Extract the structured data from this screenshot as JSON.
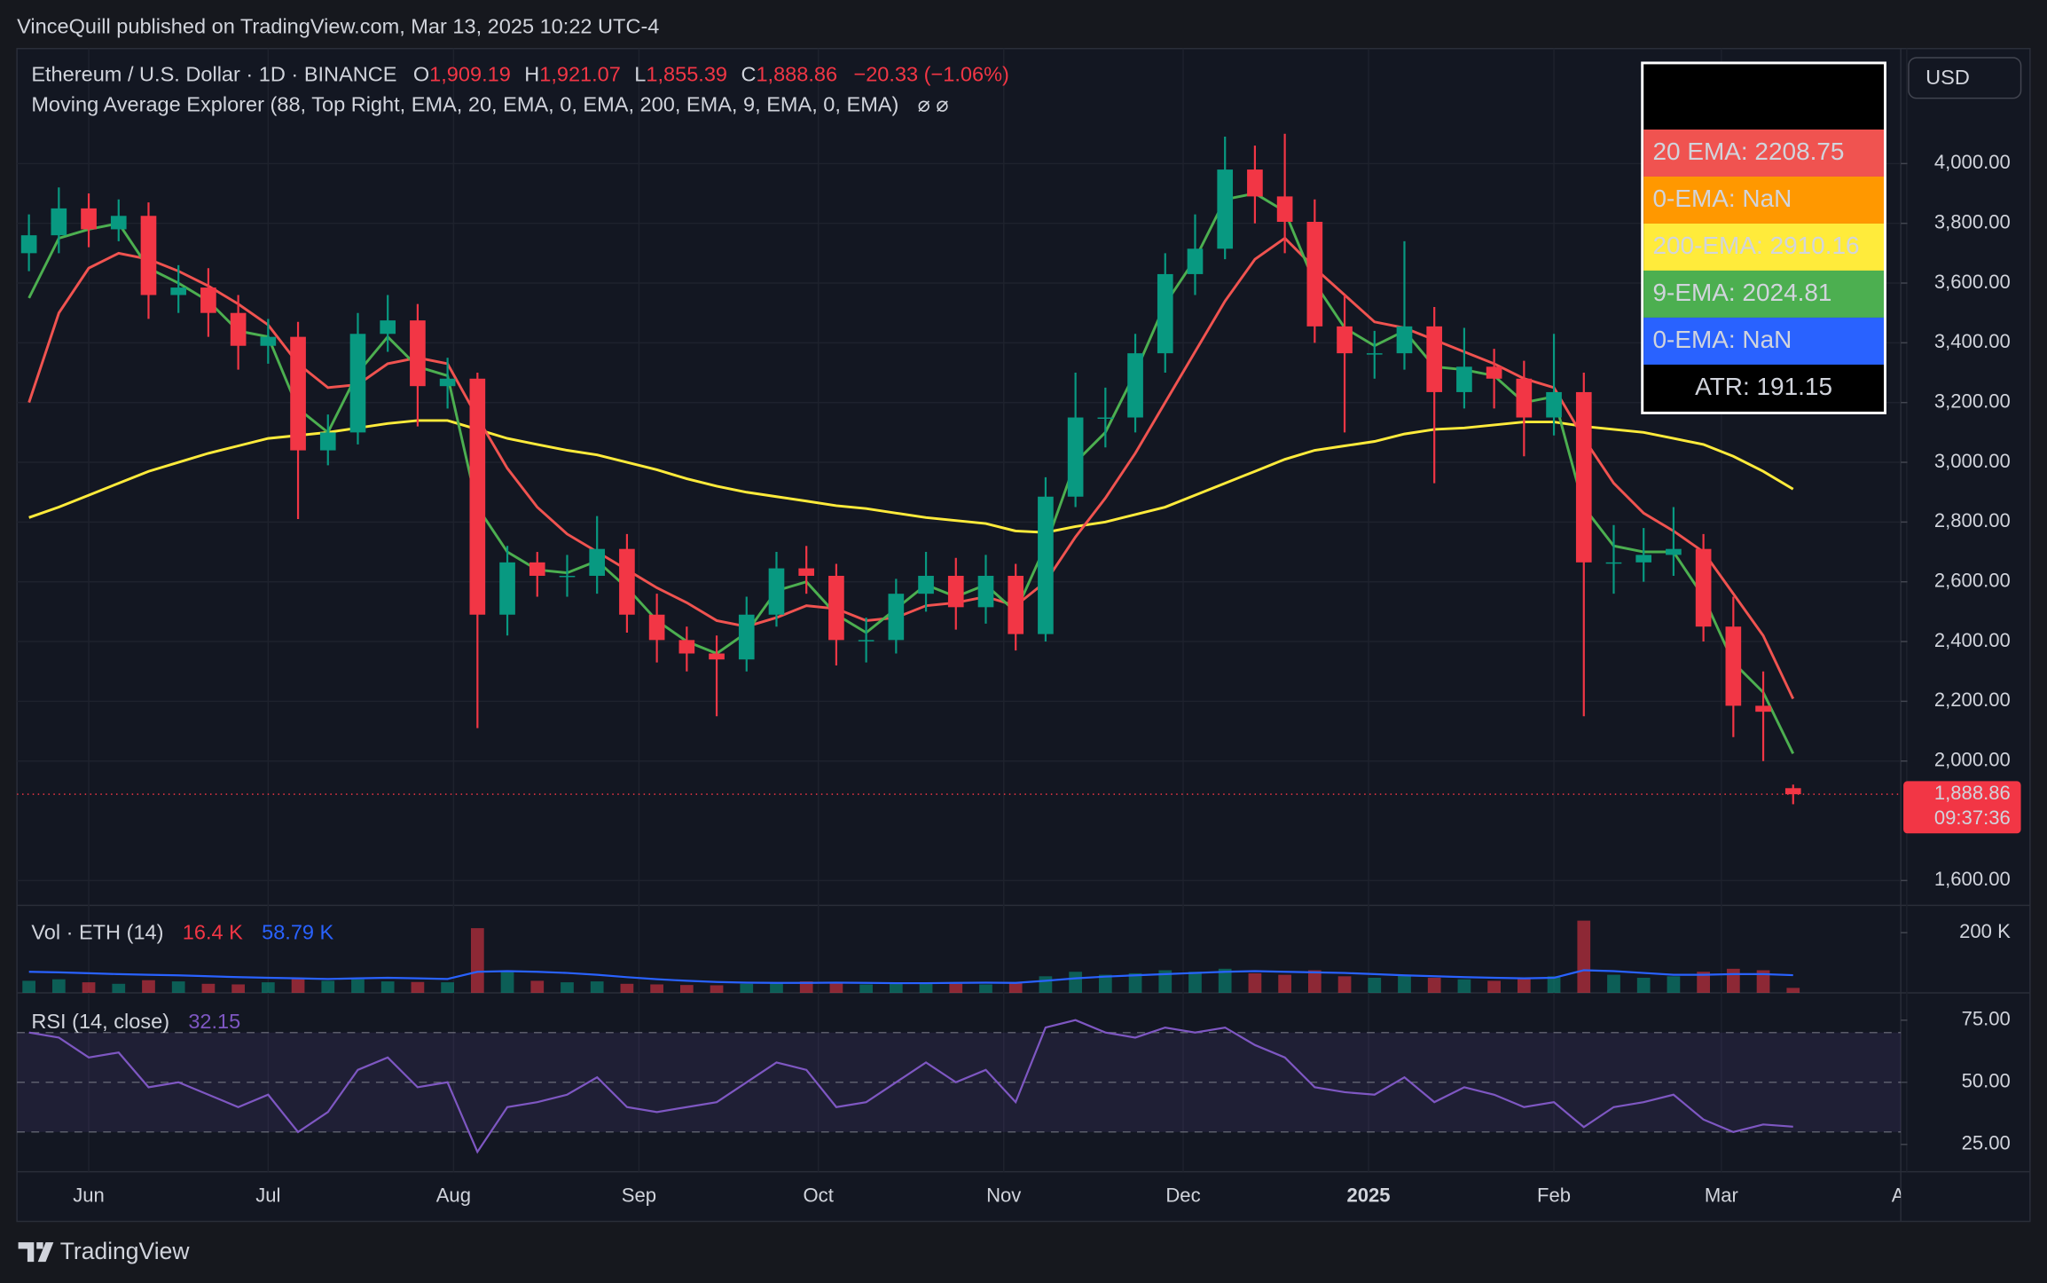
{
  "header": {
    "publisher": "VinceQuill published on TradingView.com, Mar 13, 2025 10:22 UTC-4",
    "brand": "TradingView",
    "currency": "USD"
  },
  "chart_data": [
    {
      "type": "candlestick",
      "title": "Ethereum / U.S. Dollar · 1D · BINANCE",
      "ohlc_legend": [
        {
          "key": "O",
          "text": "1,909.19"
        },
        {
          "key": "H",
          "text": "1,921.07"
        },
        {
          "key": "L",
          "text": "1,855.39"
        },
        {
          "key": "C",
          "text": "1,888.86"
        }
      ],
      "change": "−20.33 (−1.06%)",
      "indicator": "Moving Average Explorer (88, Top Right, EMA, 20, EMA, 0, EMA, 200, EMA, 9, EMA, 0, EMA)",
      "indicator_icons": "⌀ ⌀",
      "up_color": "#089981",
      "down_color": "#f23645",
      "x": [
        -10,
        -5,
        0,
        5,
        10,
        15,
        20,
        25,
        30,
        35,
        40,
        45,
        50,
        55,
        60,
        65,
        70,
        75,
        80,
        85,
        90,
        95,
        100,
        105,
        110,
        115,
        120,
        125,
        130,
        135,
        140,
        145,
        150,
        155,
        160,
        165,
        170,
        175,
        180,
        185,
        190,
        195,
        200,
        205,
        210,
        215,
        220,
        225,
        230,
        235,
        240,
        245,
        250,
        255,
        260,
        265,
        270,
        275,
        280,
        285
      ],
      "open": [
        3700,
        3760,
        3850,
        3780,
        3825,
        3560,
        3585,
        3500,
        3390,
        3420,
        3040,
        3100,
        3430,
        3475,
        3255,
        3280,
        2490,
        2665,
        2620,
        2620,
        2710,
        2490,
        2405,
        2360,
        2340,
        2490,
        2645,
        2620,
        2405,
        2405,
        2560,
        2620,
        2515,
        2620,
        2425,
        2885,
        3150,
        3150,
        3365,
        3630,
        3715,
        3980,
        3890,
        3805,
        3455,
        3365,
        3365,
        3455,
        3235,
        3320,
        3280,
        3150,
        3235,
        2665,
        2665,
        2690,
        2710,
        2450,
        2185,
        1909.19
      ],
      "high": [
        3830,
        3920,
        3900,
        3880,
        3870,
        3660,
        3650,
        3560,
        3480,
        3470,
        3160,
        3500,
        3560,
        3530,
        3350,
        3300,
        2720,
        2700,
        2690,
        2820,
        2760,
        2560,
        2450,
        2420,
        2550,
        2700,
        2720,
        2660,
        2480,
        2610,
        2700,
        2680,
        2690,
        2660,
        2950,
        3300,
        3250,
        3430,
        3700,
        3830,
        4090,
        4060,
        4100,
        3880,
        3560,
        3440,
        3740,
        3520,
        3450,
        3380,
        3340,
        3430,
        3300,
        2790,
        2780,
        2850,
        2760,
        2550,
        2300,
        1921.07
      ],
      "low": [
        3640,
        3700,
        3720,
        3740,
        3480,
        3500,
        3420,
        3310,
        3330,
        2810,
        2990,
        3060,
        3370,
        3120,
        3180,
        2110,
        2420,
        2550,
        2550,
        2560,
        2430,
        2330,
        2300,
        2150,
        2300,
        2450,
        2560,
        2320,
        2330,
        2360,
        2500,
        2440,
        2460,
        2370,
        2400,
        2850,
        3050,
        3100,
        3300,
        3560,
        3680,
        3800,
        3700,
        3400,
        3100,
        3280,
        3310,
        2930,
        3180,
        3180,
        3020,
        3090,
        2150,
        2560,
        2600,
        2620,
        2400,
        2080,
        2000,
        1855.39
      ],
      "close": [
        3760,
        3850,
        3780,
        3825,
        3560,
        3585,
        3500,
        3390,
        3420,
        3040,
        3100,
        3430,
        3475,
        3255,
        3280,
        2490,
        2665,
        2620,
        2620,
        2710,
        2490,
        2405,
        2360,
        2340,
        2490,
        2645,
        2620,
        2405,
        2405,
        2560,
        2620,
        2515,
        2620,
        2425,
        2885,
        3150,
        3150,
        3365,
        3630,
        3715,
        3980,
        3890,
        3805,
        3455,
        3365,
        3365,
        3455,
        3235,
        3320,
        3280,
        3150,
        3235,
        2665,
        2665,
        2690,
        2710,
        2450,
        2185,
        2165,
        1888.86
      ],
      "series": [
        {
          "color": "#ffeb3b",
          "values": [
            2815,
            2850,
            2890,
            2930,
            2970,
            3000,
            3030,
            3055,
            3080,
            3090,
            3100,
            3115,
            3130,
            3140,
            3140,
            3110,
            3080,
            3060,
            3040,
            3025,
            3000,
            2975,
            2945,
            2920,
            2900,
            2885,
            2870,
            2855,
            2845,
            2830,
            2815,
            2805,
            2795,
            2770,
            2765,
            2785,
            2800,
            2825,
            2850,
            2890,
            2930,
            2970,
            3010,
            3040,
            3055,
            3070,
            3095,
            3110,
            3115,
            3125,
            3135,
            3135,
            3120,
            3110,
            3100,
            3080,
            3060,
            3020,
            2970,
            2910.16
          ]
        },
        {
          "color": "#f05350",
          "values": [
            3200,
            3500,
            3650,
            3700,
            3680,
            3640,
            3590,
            3530,
            3460,
            3330,
            3250,
            3260,
            3330,
            3350,
            3330,
            3150,
            2980,
            2850,
            2760,
            2700,
            2640,
            2580,
            2530,
            2470,
            2450,
            2480,
            2520,
            2510,
            2470,
            2480,
            2520,
            2530,
            2550,
            2520,
            2600,
            2750,
            2880,
            3030,
            3200,
            3370,
            3540,
            3680,
            3750,
            3650,
            3560,
            3470,
            3450,
            3410,
            3370,
            3330,
            3280,
            3250,
            3080,
            2930,
            2830,
            2770,
            2700,
            2560,
            2420,
            2208.75
          ]
        },
        {
          "color": "#4caf50",
          "values": [
            3550,
            3750,
            3780,
            3800,
            3650,
            3600,
            3540,
            3440,
            3420,
            3180,
            3100,
            3300,
            3420,
            3320,
            3290,
            2850,
            2700,
            2640,
            2630,
            2670,
            2580,
            2470,
            2400,
            2360,
            2430,
            2570,
            2600,
            2490,
            2430,
            2510,
            2590,
            2550,
            2590,
            2500,
            2720,
            3000,
            3100,
            3300,
            3530,
            3680,
            3880,
            3900,
            3840,
            3600,
            3450,
            3390,
            3440,
            3320,
            3310,
            3290,
            3200,
            3220,
            2850,
            2720,
            2700,
            2700,
            2550,
            2330,
            2230,
            2024.81
          ]
        }
      ],
      "legend_box": {
        "entries": [
          {
            "text": "20 EMA: 2208.75",
            "color": "#f05350"
          },
          {
            "text": "0-EMA: NaN",
            "color": "#ff9800"
          },
          {
            "text": "200-EMA: 2910.16",
            "color": "#ffeb3b"
          },
          {
            "text": "9-EMA: 2024.81",
            "color": "#4caf50"
          },
          {
            "text": "0-EMA: NaN",
            "color": "#2962ff"
          }
        ],
        "atr": "ATR: 191.15"
      },
      "last_price": {
        "value": 1888.86,
        "label": "1,888.86",
        "countdown": "09:37:36"
      },
      "xlim": [
        -12,
        303
      ],
      "ylim": [
        1517,
        4385
      ],
      "yticks": [
        {
          "value": 1600,
          "label": "1,600.00"
        },
        {
          "value": 2000,
          "label": "2,000.00"
        },
        {
          "value": 2200,
          "label": "2,200.00"
        },
        {
          "value": 2400,
          "label": "2,400.00"
        },
        {
          "value": 2600,
          "label": "2,600.00"
        },
        {
          "value": 2800,
          "label": "2,800.00"
        },
        {
          "value": 3000,
          "label": "3,000.00"
        },
        {
          "value": 3200,
          "label": "3,200.00"
        },
        {
          "value": 3400,
          "label": "3,400.00"
        },
        {
          "value": 3600,
          "label": "3,600.00"
        },
        {
          "value": 3800,
          "label": "3,800.00"
        },
        {
          "value": 4000,
          "label": "4,000.00"
        }
      ],
      "grid": true
    },
    {
      "type": "bar",
      "title": "Vol · ETH (14)",
      "stats": [
        {
          "text": "16.4 K",
          "color": "#f23645"
        },
        {
          "text": "58.79 K",
          "color": "#2962ff"
        }
      ],
      "x": [
        -10,
        -5,
        0,
        5,
        10,
        15,
        20,
        25,
        30,
        35,
        40,
        45,
        50,
        55,
        60,
        65,
        70,
        75,
        80,
        85,
        90,
        95,
        100,
        105,
        110,
        115,
        120,
        125,
        130,
        135,
        140,
        145,
        150,
        155,
        160,
        165,
        170,
        175,
        180,
        185,
        190,
        195,
        200,
        205,
        210,
        215,
        220,
        225,
        230,
        235,
        240,
        245,
        250,
        255,
        260,
        265,
        270,
        275,
        280,
        285
      ],
      "values": [
        40,
        45,
        35,
        30,
        42,
        38,
        30,
        28,
        35,
        50,
        40,
        45,
        38,
        36,
        35,
        215,
        70,
        40,
        35,
        38,
        30,
        28,
        26,
        25,
        30,
        35,
        38,
        32,
        28,
        30,
        35,
        30,
        28,
        32,
        55,
        70,
        60,
        65,
        75,
        70,
        80,
        65,
        60,
        75,
        55,
        50,
        60,
        50,
        45,
        40,
        50,
        55,
        240,
        60,
        50,
        55,
        70,
        80,
        75,
        16.4
      ],
      "ma_color": "#2962ff",
      "ma_values": [
        70,
        68,
        65,
        62,
        60,
        58,
        55,
        52,
        50,
        48,
        46,
        48,
        50,
        48,
        46,
        70,
        72,
        70,
        66,
        60,
        52,
        45,
        40,
        36,
        34,
        33,
        33,
        34,
        33,
        32,
        32,
        33,
        34,
        33,
        40,
        48,
        54,
        58,
        62,
        66,
        70,
        72,
        70,
        68,
        66,
        62,
        58,
        55,
        52,
        50,
        48,
        50,
        75,
        72,
        66,
        60,
        60,
        62,
        62,
        58.79
      ],
      "xlim": [
        -12,
        303
      ],
      "ylim": [
        0,
        291
      ],
      "yticks": [
        {
          "value": 200,
          "label": "200 K"
        }
      ]
    },
    {
      "type": "line",
      "title": "RSI (14, close)",
      "stat": "32.15",
      "color": "#7e57c2",
      "x": [
        -10,
        -5,
        0,
        5,
        10,
        15,
        20,
        25,
        30,
        35,
        40,
        45,
        50,
        55,
        60,
        65,
        70,
        75,
        80,
        85,
        90,
        95,
        100,
        105,
        110,
        115,
        120,
        125,
        130,
        135,
        140,
        145,
        150,
        155,
        160,
        165,
        170,
        175,
        180,
        185,
        190,
        195,
        200,
        205,
        210,
        215,
        220,
        225,
        230,
        235,
        240,
        245,
        250,
        255,
        260,
        265,
        270,
        275,
        280,
        285
      ],
      "values": [
        70,
        68,
        60,
        62,
        48,
        50,
        45,
        40,
        45,
        30,
        38,
        55,
        60,
        48,
        50,
        22,
        40,
        42,
        45,
        52,
        40,
        38,
        40,
        42,
        50,
        58,
        55,
        40,
        42,
        50,
        58,
        50,
        55,
        42,
        72,
        75,
        70,
        68,
        72,
        70,
        72,
        65,
        60,
        48,
        46,
        45,
        52,
        42,
        48,
        45,
        40,
        42,
        32,
        40,
        42,
        45,
        35,
        30,
        33,
        32.15
      ],
      "band": [
        30,
        70
      ],
      "midline": 50,
      "xlim": [
        -12,
        303
      ],
      "ylim": [
        14,
        86
      ],
      "yticks": [
        {
          "value": 25,
          "label": "25.00"
        },
        {
          "value": 50,
          "label": "50.00"
        },
        {
          "value": 75,
          "label": "75.00"
        }
      ],
      "xticks": [
        {
          "value": 0,
          "label": "Jun"
        },
        {
          "value": 30,
          "label": "Jul"
        },
        {
          "value": 61,
          "label": "Aug"
        },
        {
          "value": 92,
          "label": "Sep"
        },
        {
          "value": 122,
          "label": "Oct"
        },
        {
          "value": 153,
          "label": "Nov"
        },
        {
          "value": 183,
          "label": "Dec"
        },
        {
          "value": 214,
          "label": "2025"
        },
        {
          "value": 245,
          "label": "Feb"
        },
        {
          "value": 273,
          "label": "Mar"
        },
        {
          "value": 304,
          "label": "Apr"
        }
      ]
    }
  ]
}
